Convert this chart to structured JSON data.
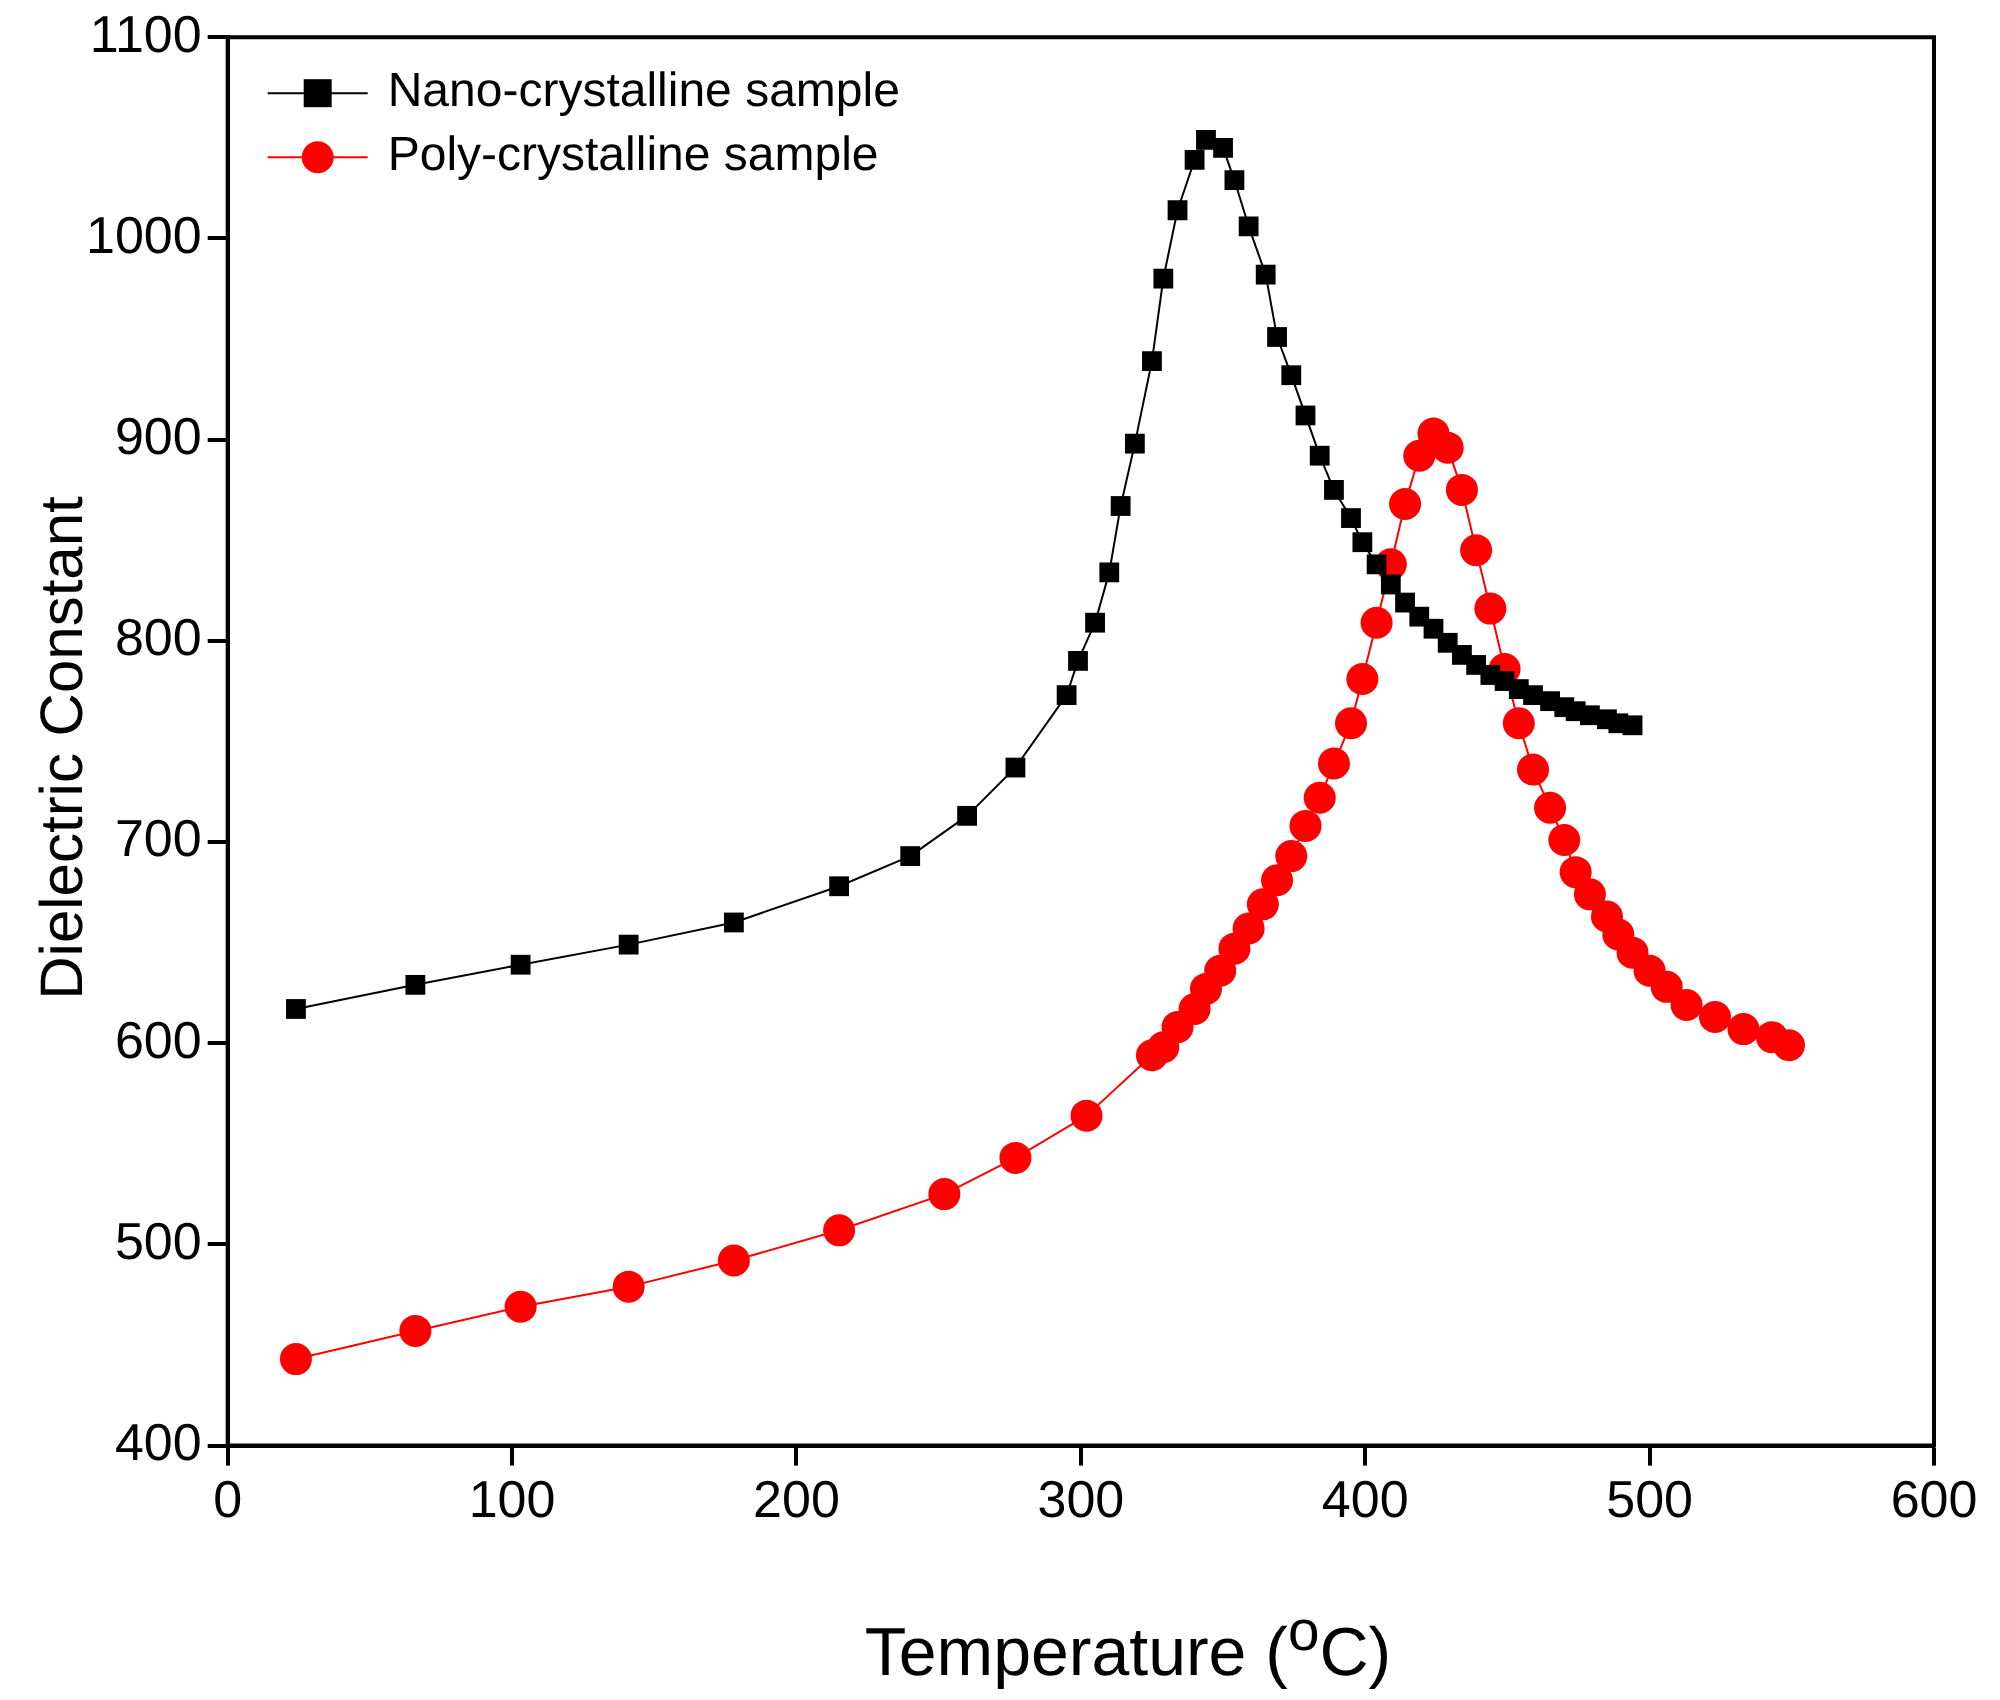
{
  "chart_data": {
    "type": "line",
    "xlabel": "Temperature ($^{o}$C)",
    "ylabel": "Dielectric Constant",
    "xlim": [
      0,
      600
    ],
    "xticks": [
      0,
      100,
      200,
      300,
      400,
      500,
      600
    ],
    "ylim": [
      400,
      1100
    ],
    "yticks": [
      400,
      500,
      600,
      700,
      800,
      900,
      1000,
      1100
    ],
    "legend": "top left",
    "line_style": "solid",
    "series": [
      {
        "name": "Nano-crystalline sample",
        "color": "#000000",
        "marker": "square",
        "x": [
          24,
          66,
          103,
          141,
          178,
          215,
          240,
          260,
          277,
          295,
          299,
          305,
          310,
          314,
          319,
          325,
          329,
          334,
          340,
          344,
          350,
          354,
          359,
          365,
          369,
          374,
          379,
          384,
          389,
          395,
          399,
          404,
          409,
          414,
          419,
          424,
          429,
          434,
          439,
          444,
          449,
          454,
          459,
          465,
          470,
          474,
          479,
          485,
          489,
          494
        ],
        "values": [
          617,
          629,
          639,
          649,
          660,
          678,
          693,
          713,
          737,
          773,
          790,
          809,
          834,
          867,
          898,
          939,
          980,
          1014,
          1039,
          1049,
          1045,
          1029,
          1006,
          982,
          951,
          932,
          912,
          892,
          875,
          861,
          849,
          838,
          828,
          819,
          812,
          806,
          799,
          793,
          788,
          783,
          780,
          776,
          773,
          770,
          767,
          765,
          763,
          761,
          759,
          758
        ]
      },
      {
        "name": "Poly-crystalline sample",
        "color": "#ff0000",
        "marker": "circle",
        "x": [
          24,
          66,
          103,
          141,
          178,
          215,
          252,
          277,
          302,
          325,
          329,
          334,
          340,
          344,
          349,
          354,
          359,
          364,
          369,
          374,
          379,
          384,
          389,
          395,
          399,
          404,
          409,
          414,
          419,
          424,
          429,
          434,
          439,
          444,
          449,
          454,
          459,
          465,
          470,
          474,
          479,
          485,
          489,
          494,
          500,
          506,
          513,
          523,
          533,
          543,
          549
        ],
        "values": [
          443,
          457,
          469,
          479,
          492,
          507,
          525,
          543,
          564,
          594,
          598,
          608,
          617,
          627,
          636,
          647,
          657,
          669,
          681,
          693,
          708,
          722,
          739,
          759,
          781,
          809,
          838,
          868,
          892,
          903,
          896,
          875,
          845,
          816,
          786,
          759,
          736,
          717,
          701,
          685,
          674,
          663,
          654,
          645,
          636,
          628,
          619,
          613,
          607,
          603,
          599
        ]
      }
    ]
  }
}
